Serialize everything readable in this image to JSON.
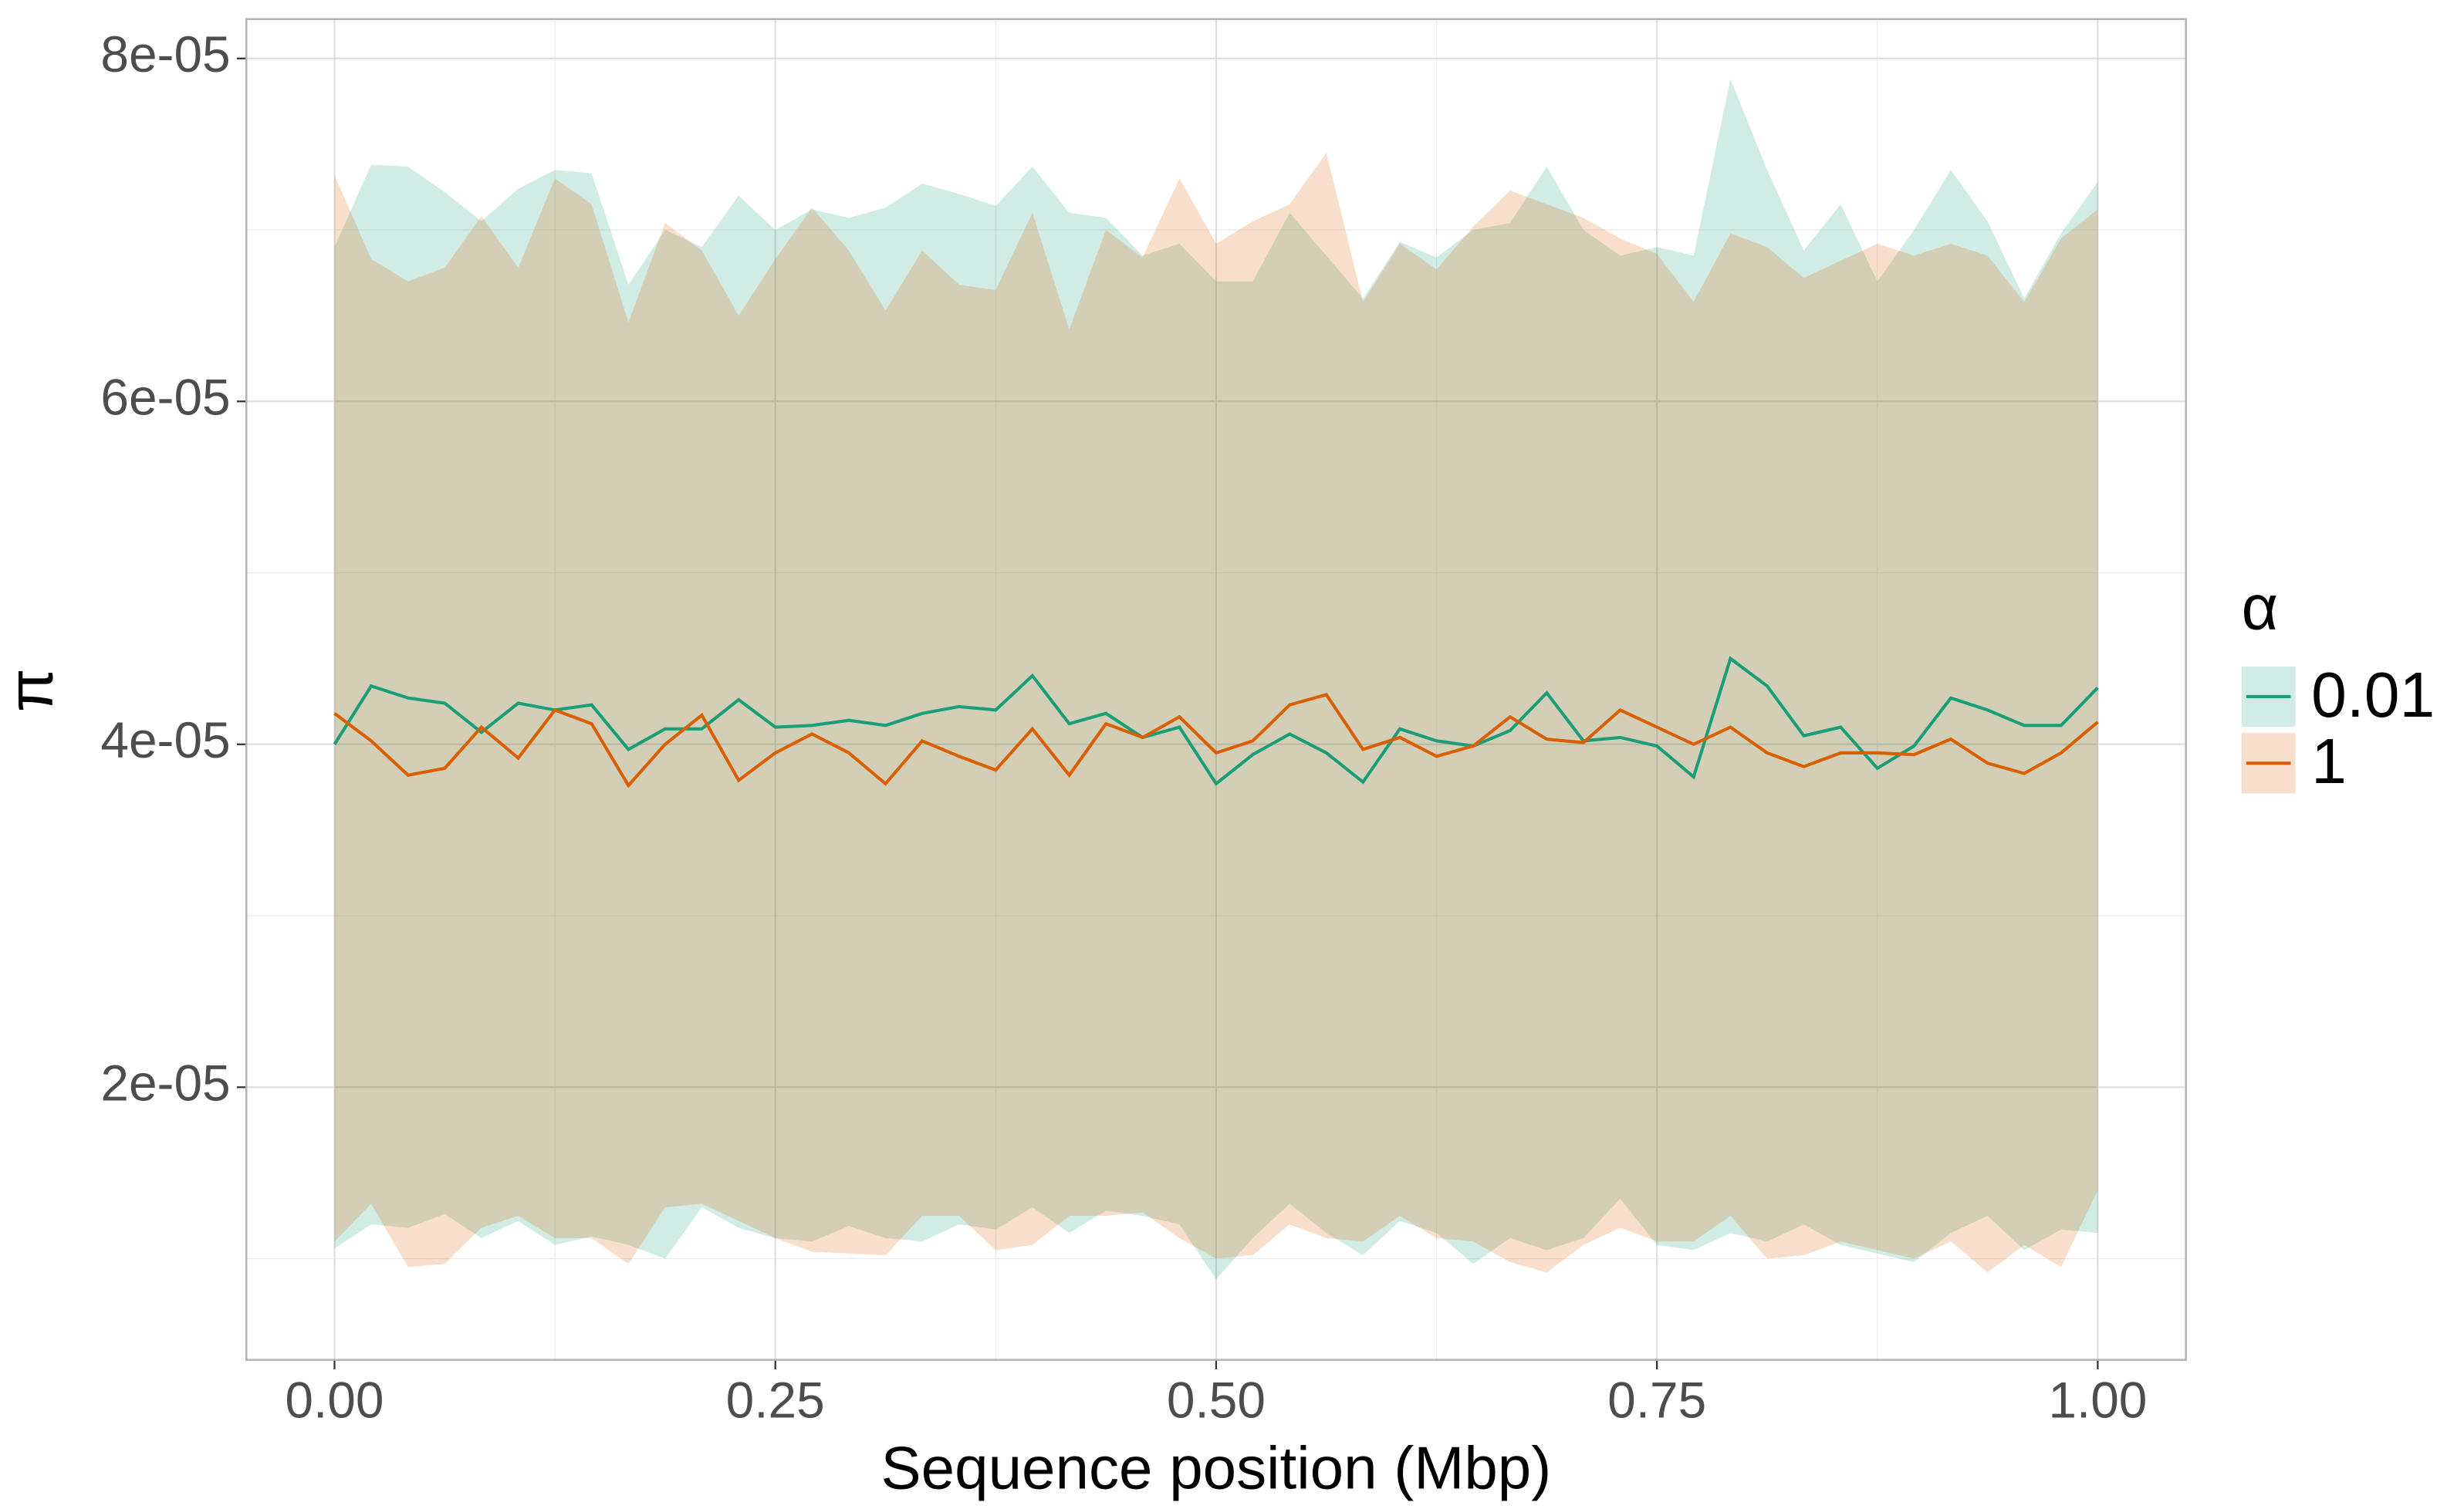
{
  "chart_data": {
    "type": "line_ribbon",
    "xlabel": "Sequence position (Mbp)",
    "ylabel": "π",
    "legend_title": "α",
    "legend": "right",
    "xlim": [
      -0.05,
      1.05
    ],
    "ylim": [
      4.1e-06,
      8.23e-05
    ],
    "xticks": [
      {
        "value": 0,
        "label": "0.00"
      },
      {
        "value": 0.25,
        "label": "0.25"
      },
      {
        "value": 0.5,
        "label": "0.50"
      },
      {
        "value": 0.75,
        "label": "0.75"
      },
      {
        "value": 1,
        "label": "1.00"
      }
    ],
    "yticks": [
      {
        "value": 2e-05,
        "label": "2e-05"
      },
      {
        "value": 4e-05,
        "label": "4e-05"
      },
      {
        "value": 6e-05,
        "label": "6e-05"
      },
      {
        "value": 8e-05,
        "label": "8e-05"
      }
    ],
    "xminor": [
      0.125,
      0.375,
      0.625,
      0.875
    ],
    "yminor": [
      1e-05,
      3e-05,
      5e-05,
      7e-05
    ],
    "grid": true,
    "ribbon_opacity": 0.2,
    "x": [
      0,
      0.0208,
      0.0417,
      0.0625,
      0.0833,
      0.1042,
      0.125,
      0.1458,
      0.1667,
      0.1875,
      0.2083,
      0.2292,
      0.25,
      0.2708,
      0.2917,
      0.3125,
      0.3333,
      0.3542,
      0.375,
      0.3958,
      0.4167,
      0.4375,
      0.4583,
      0.4792,
      0.5,
      0.5208,
      0.5417,
      0.5625,
      0.5833,
      0.6042,
      0.625,
      0.6458,
      0.6667,
      0.6875,
      0.7083,
      0.7292,
      0.75,
      0.7708,
      0.7917,
      0.8125,
      0.8333,
      0.8542,
      0.875,
      0.8958,
      0.9167,
      0.9375,
      0.9583,
      0.9792,
      1
    ],
    "series": [
      {
        "name": "0.01",
        "color": "#1b9e77",
        "values": [
          4e-05,
          4.34e-05,
          4.27e-05,
          4.24e-05,
          4.07e-05,
          4.24e-05,
          4.2e-05,
          4.23e-05,
          3.97e-05,
          4.09e-05,
          4.09e-05,
          4.26e-05,
          4.1e-05,
          4.11e-05,
          4.14e-05,
          4.11e-05,
          4.18e-05,
          4.22e-05,
          4.2e-05,
          4.4e-05,
          4.12e-05,
          4.18e-05,
          4.04e-05,
          4.1e-05,
          3.77e-05,
          3.94e-05,
          4.06e-05,
          3.95e-05,
          3.78e-05,
          4.09e-05,
          4.02e-05,
          3.99e-05,
          4.08e-05,
          4.3e-05,
          4.02e-05,
          4.04e-05,
          3.99e-05,
          3.81e-05,
          4.5e-05,
          4.34e-05,
          4.05e-05,
          4.1e-05,
          3.86e-05,
          3.99e-05,
          4.27e-05,
          4.2e-05,
          4.11e-05,
          4.11e-05,
          4.33e-05
        ],
        "upper": [
          6.9e-05,
          7.38e-05,
          7.37e-05,
          7.22e-05,
          7.05e-05,
          7.24e-05,
          7.35e-05,
          7.33e-05,
          6.68e-05,
          7e-05,
          6.9e-05,
          7.2e-05,
          7e-05,
          7.12e-05,
          7.07e-05,
          7.13e-05,
          7.27e-05,
          7.21e-05,
          7.14e-05,
          7.37e-05,
          7.1e-05,
          7.07e-05,
          6.85e-05,
          6.92e-05,
          6.7e-05,
          6.7e-05,
          7.1e-05,
          6.85e-05,
          6.6e-05,
          6.93e-05,
          6.84e-05,
          7e-05,
          7.04e-05,
          7.37e-05,
          7e-05,
          6.85e-05,
          6.9e-05,
          6.85e-05,
          7.88e-05,
          7.35e-05,
          6.88e-05,
          7.15e-05,
          6.7e-05,
          7e-05,
          7.35e-05,
          7.05e-05,
          6.6e-05,
          6.98e-05,
          7.28e-05
        ],
        "lower": [
          1.06e-05,
          1.2e-05,
          1.18e-05,
          1.26e-05,
          1.12e-05,
          1.22e-05,
          1.08e-05,
          1.13e-05,
          1.08e-05,
          1e-05,
          1.3e-05,
          1.18e-05,
          1.12e-05,
          1.1e-05,
          1.19e-05,
          1.12e-05,
          1.1e-05,
          1.2e-05,
          1.17e-05,
          1.3e-05,
          1.15e-05,
          1.28e-05,
          1.25e-05,
          1.2e-05,
          8.8e-06,
          1.12e-05,
          1.32e-05,
          1.15e-05,
          1.02e-05,
          1.22e-05,
          1.15e-05,
          9.7e-06,
          1.12e-05,
          1.05e-05,
          1.12e-05,
          1.35e-05,
          1.08e-05,
          1.05e-05,
          1.15e-05,
          1.1e-05,
          1.2e-05,
          1.08e-05,
          1.03e-05,
          9.8e-06,
          1.15e-05,
          1.25e-05,
          1.05e-05,
          1.17e-05,
          1.15e-05
        ]
      },
      {
        "name": "1",
        "color": "#d95f02",
        "values": [
          4.18e-05,
          4.02e-05,
          3.82e-05,
          3.86e-05,
          4.1e-05,
          3.92e-05,
          4.2e-05,
          4.12e-05,
          3.76e-05,
          4e-05,
          4.17e-05,
          3.79e-05,
          3.95e-05,
          4.06e-05,
          3.95e-05,
          3.77e-05,
          4.02e-05,
          3.93e-05,
          3.85e-05,
          4.09e-05,
          3.82e-05,
          4.12e-05,
          4.04e-05,
          4.16e-05,
          3.95e-05,
          4.02e-05,
          4.23e-05,
          4.29e-05,
          3.97e-05,
          4.04e-05,
          3.93e-05,
          3.99e-05,
          4.16e-05,
          4.03e-05,
          4.01e-05,
          4.2e-05,
          4.1e-05,
          4e-05,
          4.1e-05,
          3.95e-05,
          3.87e-05,
          3.95e-05,
          3.95e-05,
          3.94e-05,
          4.03e-05,
          3.89e-05,
          3.83e-05,
          3.95e-05,
          4.13e-05
        ],
        "upper": [
          7.32e-05,
          6.83e-05,
          6.7e-05,
          6.78e-05,
          7.08e-05,
          6.78e-05,
          7.3e-05,
          7.15e-05,
          6.46e-05,
          7.04e-05,
          6.88e-05,
          6.5e-05,
          6.83e-05,
          7.13e-05,
          6.88e-05,
          6.53e-05,
          6.88e-05,
          6.68e-05,
          6.65e-05,
          7.1e-05,
          6.42e-05,
          7e-05,
          6.84e-05,
          7.3e-05,
          6.92e-05,
          7.05e-05,
          7.15e-05,
          7.45e-05,
          6.58e-05,
          6.92e-05,
          6.77e-05,
          7.02e-05,
          7.23e-05,
          7.15e-05,
          7.07e-05,
          6.95e-05,
          6.86e-05,
          6.58e-05,
          6.98e-05,
          6.9e-05,
          6.72e-05,
          6.82e-05,
          6.92e-05,
          6.85e-05,
          6.92e-05,
          6.85e-05,
          6.58e-05,
          6.95e-05,
          7.12e-05
        ],
        "lower": [
          1.1e-05,
          1.32e-05,
          9.5e-06,
          9.7e-06,
          1.18e-05,
          1.25e-05,
          1.12e-05,
          1.12e-05,
          9.7e-06,
          1.3e-05,
          1.32e-05,
          1.22e-05,
          1.12e-05,
          1.04e-05,
          1.03e-05,
          1.02e-05,
          1.25e-05,
          1.25e-05,
          1.05e-05,
          1.08e-05,
          1.25e-05,
          1.25e-05,
          1.27e-05,
          1.12e-05,
          1e-05,
          1.02e-05,
          1.2e-05,
          1.12e-05,
          1.1e-05,
          1.25e-05,
          1.12e-05,
          1.1e-05,
          9.8e-06,
          9.2e-06,
          1.08e-05,
          1.18e-05,
          1.1e-05,
          1.1e-05,
          1.25e-05,
          1e-05,
          1.02e-05,
          1.1e-05,
          1.05e-05,
          1e-05,
          1.1e-05,
          9.2e-06,
          1.08e-05,
          9.5e-06,
          1.4e-05
        ]
      }
    ]
  }
}
